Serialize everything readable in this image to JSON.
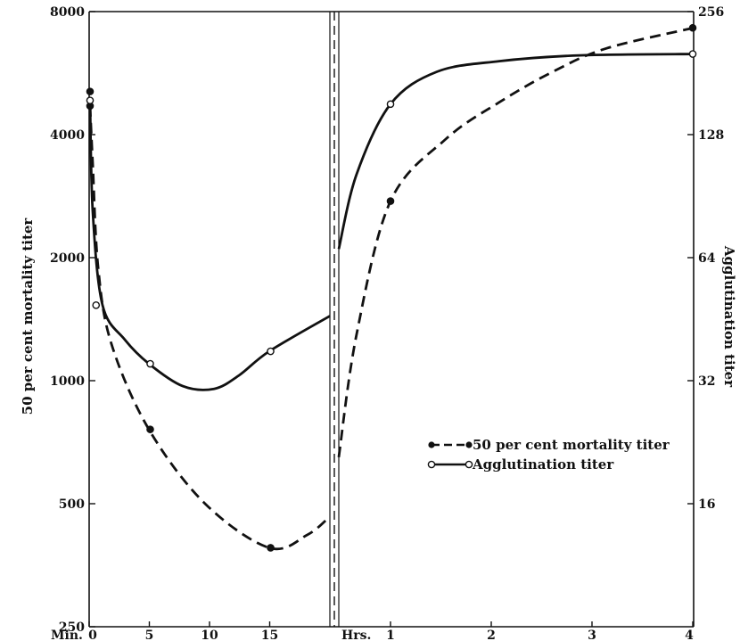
{
  "chart_data": {
    "type": "line",
    "left_axis": {
      "label": "50 per cent mortality titer",
      "scale": "log",
      "range": [
        250,
        8000
      ],
      "ticks": [
        "8000",
        "4000",
        "2000",
        "1000",
        "500",
        "250"
      ]
    },
    "right_axis": {
      "label": "Agglutination titer",
      "scale": "log",
      "range": [
        8,
        256
      ],
      "ticks": [
        "256",
        "128",
        "64",
        "32",
        "16"
      ]
    },
    "panels": [
      {
        "unit_label": "Min.",
        "x_ticks": [
          "0",
          "5",
          "10",
          "15"
        ],
        "x_range": [
          0,
          20
        ]
      },
      {
        "unit_label": "Hrs.",
        "x_ticks": [
          "1",
          "2",
          "3",
          "4"
        ],
        "x_range": [
          0,
          4
        ]
      }
    ],
    "series": [
      {
        "name": "50 per cent mortality titer",
        "marker": "filled-circle",
        "line": "dashed",
        "axis": "left",
        "minutes_points": [
          {
            "x": 0,
            "y": 5100
          },
          {
            "x": 0,
            "y": 4700
          },
          {
            "x": 5,
            "y": 760
          },
          {
            "x": 15,
            "y": 390
          }
        ],
        "hours_points": [
          {
            "x": 1,
            "y": 2750
          },
          {
            "x": 4,
            "y": 7300
          }
        ]
      },
      {
        "name": "Agglutination titer",
        "marker": "open-circle",
        "line": "solid",
        "axis": "left",
        "minutes_points": [
          {
            "x": 0,
            "y": 4850
          },
          {
            "x": 0.5,
            "y": 1530
          },
          {
            "x": 5,
            "y": 1100
          },
          {
            "x": 15,
            "y": 1180
          }
        ],
        "hours_points": [
          {
            "x": 1,
            "y": 4750
          },
          {
            "x": 4,
            "y": 6300
          }
        ]
      }
    ],
    "legend": {
      "position": "lower-right",
      "entries": [
        "50 per cent mortality titer",
        "Agglutination titer"
      ]
    }
  }
}
